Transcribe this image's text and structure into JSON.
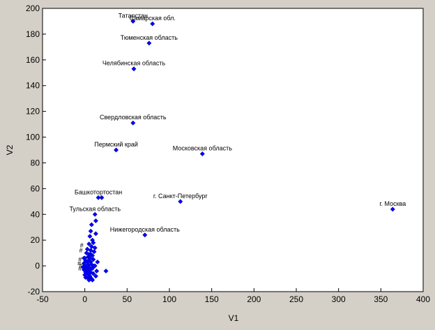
{
  "chart_data": {
    "type": "scatter",
    "xlabel": "V1",
    "ylabel": "V2",
    "xlim": [
      -50,
      400
    ],
    "ylim": [
      -20,
      200
    ],
    "xticks": [
      -50,
      0,
      50,
      100,
      150,
      200,
      250,
      300,
      350,
      400
    ],
    "yticks": [
      -20,
      0,
      20,
      40,
      60,
      80,
      100,
      120,
      140,
      160,
      180,
      200
    ],
    "grid": false,
    "colors": {
      "background": "#d4d0c8",
      "plot_area": "#ffffff",
      "marker": "#0000ff",
      "text": "#000000"
    },
    "labeled_points": [
      {
        "label": "Татарстан",
        "x": 57,
        "y": 190
      },
      {
        "label": "Самарская обл.",
        "x": 80,
        "y": 188
      },
      {
        "label": "Тюменская область",
        "x": 76,
        "y": 173
      },
      {
        "label": "Челябинская область",
        "x": 58,
        "y": 153
      },
      {
        "label": "Свердловская область",
        "x": 57,
        "y": 111
      },
      {
        "label": "Пермский край",
        "x": 37,
        "y": 90
      },
      {
        "label": "Московская область",
        "x": 139,
        "y": 87
      },
      {
        "label": "Башкотортостан",
        "x": 16,
        "y": 53
      },
      {
        "label": "г. Санкт-Петербург",
        "x": 113,
        "y": 50
      },
      {
        "label": "г. Москва",
        "x": 364,
        "y": 44
      },
      {
        "label": "Тульская область",
        "x": 12,
        "y": 40
      },
      {
        "label": "Нижегородская область",
        "x": 71,
        "y": 24
      }
    ],
    "points": [
      {
        "x": 20,
        "y": 53
      },
      {
        "x": 13,
        "y": 35
      },
      {
        "x": 8,
        "y": 32
      },
      {
        "x": 7,
        "y": 27
      },
      {
        "x": 13,
        "y": 25
      },
      {
        "x": 6,
        "y": 23
      },
      {
        "x": 9,
        "y": 20
      },
      {
        "x": 10,
        "y": 18
      },
      {
        "x": 5,
        "y": 17
      },
      {
        "x": 8,
        "y": 15
      },
      {
        "x": 3,
        "y": 13
      },
      {
        "x": 7,
        "y": 12
      },
      {
        "x": 11,
        "y": 11
      },
      {
        "x": 2,
        "y": 10
      },
      {
        "x": 5,
        "y": 9
      },
      {
        "x": 9,
        "y": 8
      },
      {
        "x": 4,
        "y": 7
      },
      {
        "x": 0,
        "y": 6
      },
      {
        "x": 6,
        "y": 6
      },
      {
        "x": 10,
        "y": 5
      },
      {
        "x": 1,
        "y": 4
      },
      {
        "x": 3,
        "y": 3
      },
      {
        "x": 7,
        "y": 3
      },
      {
        "x": -1,
        "y": 2
      },
      {
        "x": 4,
        "y": 1
      },
      {
        "x": 8,
        "y": 1
      },
      {
        "x": 12,
        "y": 0
      },
      {
        "x": 0,
        "y": 0
      },
      {
        "x": 5,
        "y": -1
      },
      {
        "x": 2,
        "y": -2
      },
      {
        "x": 9,
        "y": -2
      },
      {
        "x": -1,
        "y": -3
      },
      {
        "x": 6,
        "y": -3
      },
      {
        "x": 3,
        "y": -4
      },
      {
        "x": 1,
        "y": -5
      },
      {
        "x": 7,
        "y": -5
      },
      {
        "x": 4,
        "y": -6
      },
      {
        "x": 10,
        "y": -6
      },
      {
        "x": 0,
        "y": -7
      },
      {
        "x": 6,
        "y": -8
      },
      {
        "x": 3,
        "y": -9
      },
      {
        "x": 8,
        "y": -10
      },
      {
        "x": 5,
        "y": -11
      },
      {
        "x": 9,
        "y": -11
      },
      {
        "x": 13,
        "y": -8
      },
      {
        "x": 14,
        "y": -4
      },
      {
        "x": 11,
        "y": 0
      },
      {
        "x": 15,
        "y": 3
      },
      {
        "x": 25,
        "y": -4
      },
      {
        "x": 12,
        "y": 14
      },
      {
        "x": 2,
        "y": 0
      },
      {
        "x": -2,
        "y": -1
      },
      {
        "x": 7,
        "y": 9
      },
      {
        "x": 1,
        "y": -9
      },
      {
        "x": 4,
        "y": 4
      },
      {
        "x": -1,
        "y": 6
      }
    ]
  }
}
